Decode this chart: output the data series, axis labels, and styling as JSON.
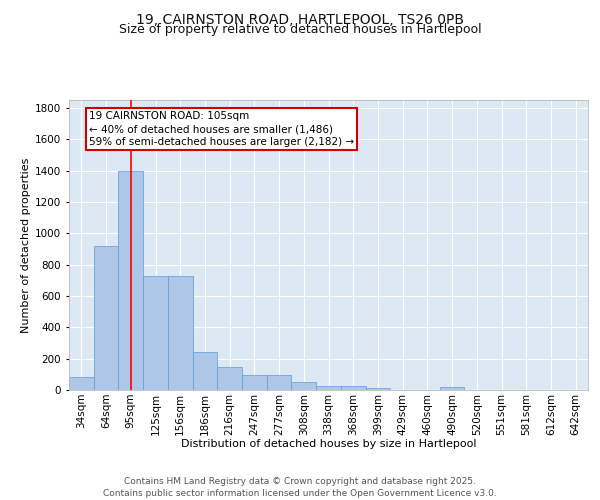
{
  "title_line1": "19, CAIRNSTON ROAD, HARTLEPOOL, TS26 0PB",
  "title_line2": "Size of property relative to detached houses in Hartlepool",
  "xlabel": "Distribution of detached houses by size in Hartlepool",
  "ylabel": "Number of detached properties",
  "categories": [
    "34sqm",
    "64sqm",
    "95sqm",
    "125sqm",
    "156sqm",
    "186sqm",
    "216sqm",
    "247sqm",
    "277sqm",
    "308sqm",
    "338sqm",
    "368sqm",
    "399sqm",
    "429sqm",
    "460sqm",
    "490sqm",
    "520sqm",
    "551sqm",
    "581sqm",
    "612sqm",
    "642sqm"
  ],
  "values": [
    85,
    920,
    1400,
    730,
    730,
    245,
    145,
    95,
    95,
    50,
    25,
    25,
    15,
    0,
    0,
    20,
    0,
    0,
    0,
    0,
    0
  ],
  "bar_color": "#aec6e8",
  "bar_edge_color": "#5b9bd5",
  "background_color": "#dce9f5",
  "red_line_x": 2.0,
  "annotation_text": "19 CAIRNSTON ROAD: 105sqm\n← 40% of detached houses are smaller (1,486)\n59% of semi-detached houses are larger (2,182) →",
  "annotation_box_color": "#ffffff",
  "annotation_box_edge_color": "#cc0000",
  "ylim": [
    0,
    1850
  ],
  "yticks": [
    0,
    200,
    400,
    600,
    800,
    1000,
    1200,
    1400,
    1600,
    1800
  ],
  "footer_line1": "Contains HM Land Registry data © Crown copyright and database right 2025.",
  "footer_line2": "Contains public sector information licensed under the Open Government Licence v3.0.",
  "title_fontsize": 10,
  "subtitle_fontsize": 9,
  "axis_label_fontsize": 8,
  "tick_fontsize": 7.5,
  "annotation_fontsize": 7.5,
  "footer_fontsize": 6.5
}
